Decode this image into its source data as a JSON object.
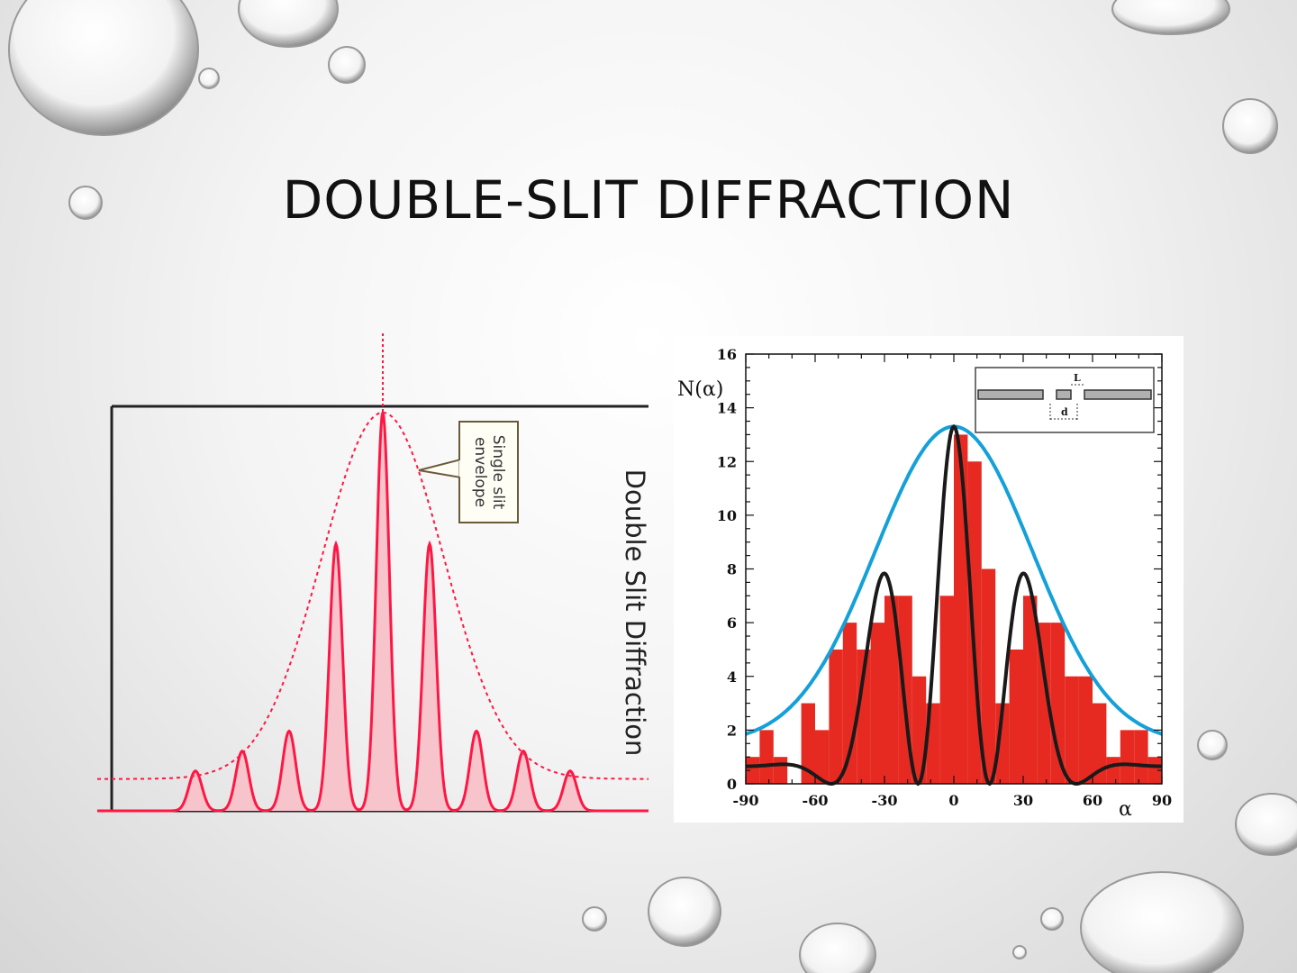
{
  "slide": {
    "title": "DOUBLE-SLIT DIFFRACTION"
  },
  "colors": {
    "intensity": "#ff1744",
    "envelope_fill": "#f8c4cc",
    "histogram": "#e62a22",
    "theory_curve": "#1a1a1a",
    "envelope_curve": "#14a0d8"
  },
  "chart_data": [
    {
      "type": "line",
      "title": "Double Slit Diffraction",
      "annotation": {
        "line1": "Single slit",
        "line2": "envelope"
      },
      "series": [
        {
          "values": "double-slit intensity pattern (red, filled)"
        },
        {
          "name": "Single slit envelope",
          "values": "single-slit envelope (dotted)"
        }
      ],
      "peaks": [
        {
          "x": -4,
          "y": 0.1
        },
        {
          "x": -3,
          "y": 0.15
        },
        {
          "x": -2,
          "y": 0.2
        },
        {
          "x": -1,
          "y": 0.67
        },
        {
          "x": 0,
          "y": 1.0
        },
        {
          "x": 1,
          "y": 0.67
        },
        {
          "x": 2,
          "y": 0.2
        },
        {
          "x": 3,
          "y": 0.15
        },
        {
          "x": 4,
          "y": 0.1
        }
      ]
    },
    {
      "type": "bar",
      "ylabel": "N(α)",
      "xlabel": "α",
      "xlim": [
        -90,
        90
      ],
      "ylim": [
        0,
        16
      ],
      "xticks": [
        "-90",
        "-60",
        "-30",
        "0",
        "30",
        "60",
        "90"
      ],
      "yticks": [
        "0",
        "2",
        "4",
        "6",
        "8",
        "10",
        "12",
        "14",
        "16"
      ],
      "inset_labels": {
        "L": "L",
        "d": "d"
      },
      "histogram": {
        "bin_width": 6,
        "x": [
          -90,
          -84,
          -78,
          -72,
          -66,
          -60,
          -54,
          -48,
          -42,
          -36,
          -30,
          -24,
          -18,
          -12,
          -6,
          0,
          6,
          12,
          18,
          24,
          30,
          36,
          42,
          48,
          54,
          60,
          66,
          72,
          78,
          84
        ],
        "values": [
          1,
          2,
          1,
          0,
          3,
          2,
          5,
          6,
          5,
          6,
          7,
          7,
          4,
          3,
          7,
          13,
          12,
          8,
          3,
          5,
          7,
          6,
          6,
          4,
          4,
          3,
          1,
          2,
          2,
          1
        ]
      },
      "series": [
        {
          "values": "double-slit theory curve (black), peak 13.3 at α=0, secondary peaks 8.8 at α=±30, minima at ±16 and ±57"
        },
        {
          "values": "single-slit envelope curve (blue), peak 13.3 at α=0"
        }
      ]
    }
  ]
}
